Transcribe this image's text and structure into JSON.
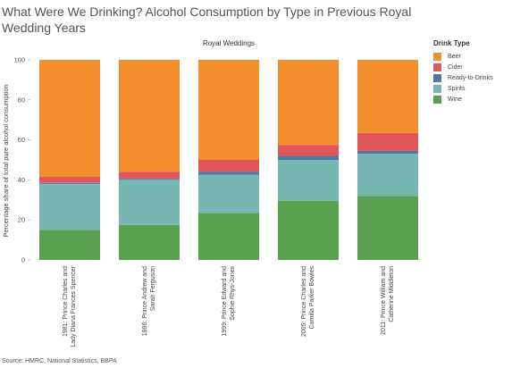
{
  "title": "What Were We Drinking? Alcohol Consumption by Type in Previous Royal Wedding Years",
  "source": "Source: HMRC, National Statistics, BBPA",
  "chart_data": {
    "type": "bar",
    "stacked": true,
    "column_header": "Royal Weddings",
    "ylabel": "Percentage share of total pure alcohol consumption",
    "ylim": [
      0,
      100
    ],
    "yticks": [
      0,
      20,
      40,
      60,
      80,
      100
    ],
    "grid": false,
    "legend_title": "Drink Type",
    "legend_position": "right",
    "categories": [
      "1981: Prince Charles and Lady Diana Frances Spencer",
      "1986: Prince Andrew and Sarah Ferguson",
      "1999: Prince Edward and Sophie Rhys-Jones",
      "2005: Prince Charles and Camilla Parker Bowles",
      "2011: Prince William and Catherine Middleton"
    ],
    "category_lines": [
      [
        "1981: Prince Charles and",
        "Lady Diana Frances Spencer"
      ],
      [
        "1986: Prince Andrew and",
        "Sarah Ferguson"
      ],
      [
        "1999: Prince Edward and",
        "Sophie Rhys-Jones"
      ],
      [
        "2005: Prince Charles and",
        "Camilla Parker Bowles"
      ],
      [
        "2011: Prince William and",
        "Catherine Middleton"
      ]
    ],
    "series": [
      {
        "name": "Wine",
        "color": "#59a14f",
        "values": [
          15,
          17.5,
          23.5,
          29.5,
          32
        ]
      },
      {
        "name": "Spirits",
        "color": "#76b7b2",
        "values": [
          23,
          22.5,
          19,
          20.5,
          21
        ]
      },
      {
        "name": "Ready-to-Drinks",
        "color": "#4e79a7",
        "values": [
          0.5,
          0.5,
          1.5,
          2,
          1.5
        ]
      },
      {
        "name": "Cider",
        "color": "#e15759",
        "values": [
          3,
          3.5,
          6,
          5.5,
          9
        ]
      },
      {
        "name": "Beer",
        "color": "#f28e2b",
        "values": [
          58.5,
          56,
          50,
          42.5,
          36.5
        ]
      }
    ],
    "legend_order": [
      "Beer",
      "Cider",
      "Ready-to-Drinks",
      "Spirits",
      "Wine"
    ]
  }
}
